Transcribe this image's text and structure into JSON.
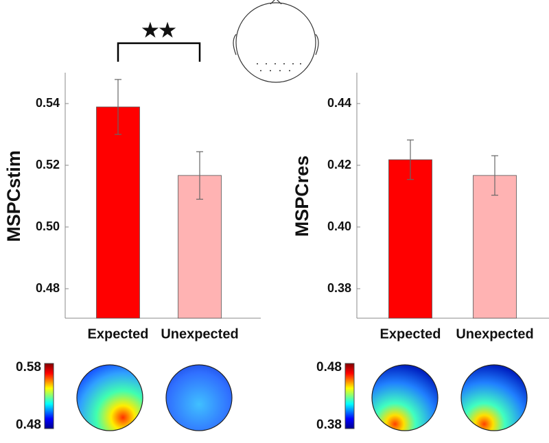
{
  "chart_data": [
    {
      "type": "bar",
      "ylabel": "MSPCstim",
      "categories": [
        "Expected",
        "Unexpected"
      ],
      "values": [
        0.5389,
        0.5167
      ],
      "errors": [
        0.0089,
        0.0077
      ],
      "colors": [
        "#ff0000",
        "#ffb3b3"
      ],
      "ylim": [
        0.47,
        0.55
      ],
      "yticks": [
        0.48,
        {
          "value": 0.5,
          "label": "0.50"
        },
        0.52,
        0.54
      ],
      "annotation": "★★",
      "colorbar_labels": [
        "0.58",
        "0.48"
      ]
    },
    {
      "type": "bar",
      "ylabel": "MSPCres",
      "categories": [
        "Expected",
        "Unexpected"
      ],
      "values": [
        0.4218,
        0.4167
      ],
      "errors": [
        0.0064,
        0.0064
      ],
      "colors": [
        "#ff0000",
        "#ffb3b3"
      ],
      "ylim": [
        0.37,
        0.45
      ],
      "yticks": [
        0.38,
        {
          "value": 0.4,
          "label": "0.40"
        },
        0.42,
        0.44
      ],
      "colorbar_labels": [
        "0.48",
        "0.38"
      ]
    }
  ]
}
